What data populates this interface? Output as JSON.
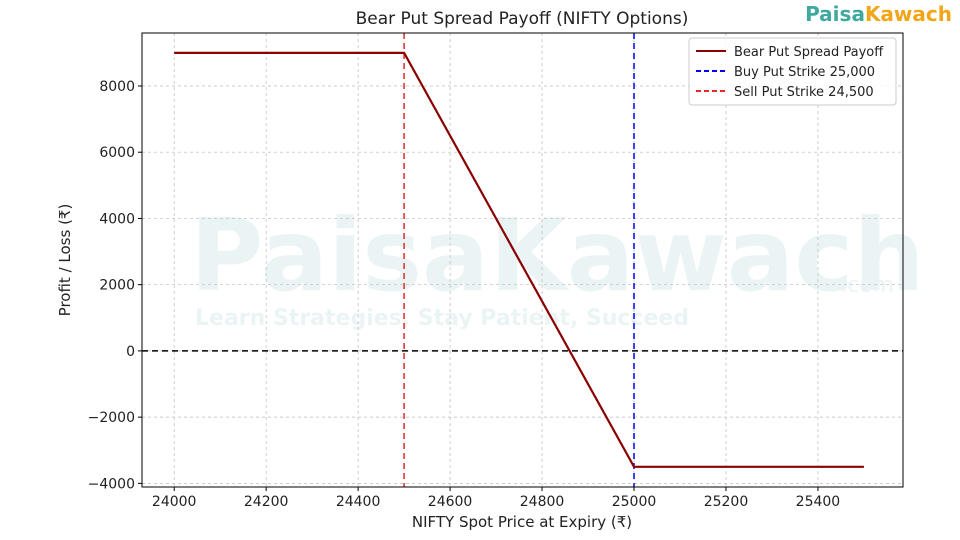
{
  "logo": {
    "text": "PaisaKawach",
    "part1": "Paisa",
    "part2": "Kawach"
  },
  "watermark": {
    "text": "PaisaKawach",
    "suffix": ".com",
    "tagline": "Learn Strategies, Stay Patient, Succeed"
  },
  "chart_data": {
    "type": "line",
    "title": "Bear Put Spread Payoff (NIFTY Options)",
    "xlabel": "NIFTY Spot Price at Expiry (₹)",
    "ylabel": "Profit / Loss (₹)",
    "xlim": [
      23930,
      25585
    ],
    "ylim": [
      -4110,
      9600
    ],
    "xticks": [
      24000,
      24200,
      24400,
      24600,
      24800,
      25000,
      25200,
      25400
    ],
    "yticks": [
      -4000,
      -2000,
      0,
      2000,
      4000,
      6000,
      8000
    ],
    "grid": true,
    "legend_position": "top-right",
    "series": [
      {
        "name": "Bear Put Spread Payoff",
        "color": "#8b0000",
        "x": [
          24000,
          24500,
          25000,
          25500
        ],
        "y": [
          9000,
          9000,
          -3500,
          -3500
        ]
      }
    ],
    "vlines": [
      {
        "name": "Buy Put Strike 25,000",
        "x": 25000,
        "color": "#0000ff"
      },
      {
        "name": "Sell Put Strike 24,500",
        "x": 24500,
        "color": "#e8262a"
      }
    ],
    "hlines": [
      {
        "y": 0,
        "color": "#000000"
      }
    ]
  }
}
